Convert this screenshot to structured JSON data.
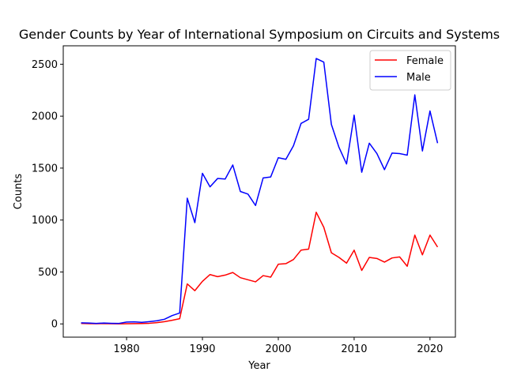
{
  "chart_data": {
    "type": "line",
    "title": "Gender Counts by Year of International Symposium on Circuits and Systems",
    "xlabel": "Year",
    "ylabel": "Counts",
    "xlim": [
      1971.65,
      2023.35
    ],
    "ylim": [
      -127.5,
      2677.5
    ],
    "xticks": [
      1980,
      1990,
      2000,
      2010,
      2020
    ],
    "yticks": [
      0,
      500,
      1000,
      1500,
      2000,
      2500
    ],
    "grid": false,
    "legend_position": "top-right",
    "x": [
      1974,
      1975,
      1976,
      1977,
      1978,
      1979,
      1980,
      1981,
      1982,
      1983,
      1984,
      1985,
      1986,
      1987,
      1988,
      1989,
      1990,
      1991,
      1992,
      1993,
      1994,
      1995,
      1996,
      1997,
      1998,
      1999,
      2000,
      2001,
      2002,
      2003,
      2004,
      2005,
      2006,
      2007,
      2008,
      2009,
      2010,
      2011,
      2012,
      2013,
      2014,
      2015,
      2016,
      2017,
      2018,
      2019,
      2020,
      2021
    ],
    "series": [
      {
        "name": "Female",
        "color": "#ff0000",
        "values": [
          5,
          3,
          2,
          3,
          2,
          1,
          2,
          3,
          4,
          6,
          12,
          22,
          35,
          50,
          385,
          320,
          410,
          475,
          455,
          470,
          495,
          445,
          425,
          405,
          465,
          450,
          575,
          580,
          620,
          710,
          720,
          1075,
          930,
          685,
          640,
          585,
          710,
          515,
          640,
          630,
          595,
          635,
          645,
          555,
          855,
          665,
          855,
          740
        ]
      },
      {
        "name": "Male",
        "color": "#0000ff",
        "values": [
          10,
          8,
          5,
          8,
          6,
          5,
          18,
          20,
          15,
          22,
          30,
          45,
          80,
          105,
          1210,
          975,
          1450,
          1320,
          1400,
          1395,
          1530,
          1275,
          1250,
          1140,
          1405,
          1415,
          1600,
          1585,
          1715,
          1930,
          1970,
          2555,
          2520,
          1920,
          1700,
          1540,
          2010,
          1460,
          1740,
          1640,
          1485,
          1645,
          1640,
          1625,
          2205,
          1665,
          2050,
          1740
        ]
      }
    ]
  }
}
